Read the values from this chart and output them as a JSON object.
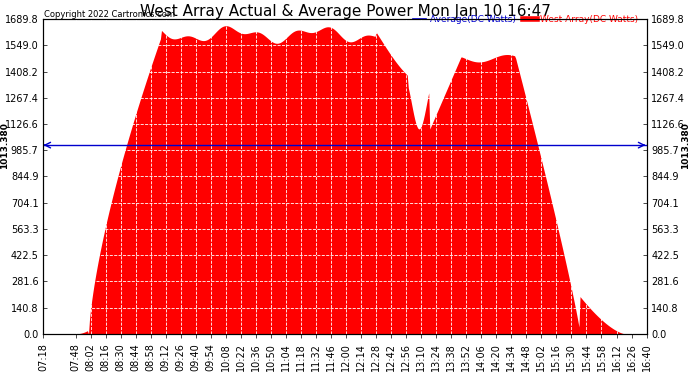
{
  "title": "West Array Actual & Average Power Mon Jan 10 16:47",
  "copyright": "Copyright 2022 Cartronics.com",
  "legend_average": "Average(DC Watts)",
  "legend_west": "West Array(DC Watts)",
  "ymin": 0.0,
  "ymax": 1689.8,
  "yticks": [
    0.0,
    140.8,
    281.6,
    422.5,
    563.3,
    704.1,
    844.9,
    985.7,
    1126.6,
    1267.4,
    1408.2,
    1549.0,
    1689.8
  ],
  "hline_value": 1013.38,
  "hline_label": "1013.380",
  "bg_color": "#ffffff",
  "fill_color": "#ff0000",
  "avg_line_color": "#0000cd",
  "hline_color": "#0000cd",
  "grid_color": "#cccccc",
  "title_fontsize": 11,
  "tick_fontsize": 7,
  "x_labels": [
    "07:18",
    "07:48",
    "08:02",
    "08:16",
    "08:30",
    "08:44",
    "08:58",
    "09:12",
    "09:26",
    "09:40",
    "09:54",
    "10:08",
    "10:22",
    "10:36",
    "10:50",
    "11:04",
    "11:18",
    "11:32",
    "11:46",
    "12:00",
    "12:14",
    "12:28",
    "12:42",
    "12:56",
    "13:10",
    "13:24",
    "13:38",
    "13:52",
    "14:06",
    "14:20",
    "14:34",
    "14:48",
    "15:02",
    "15:16",
    "15:30",
    "15:44",
    "15:58",
    "16:12",
    "16:26",
    "16:40"
  ],
  "total_minutes": 562
}
